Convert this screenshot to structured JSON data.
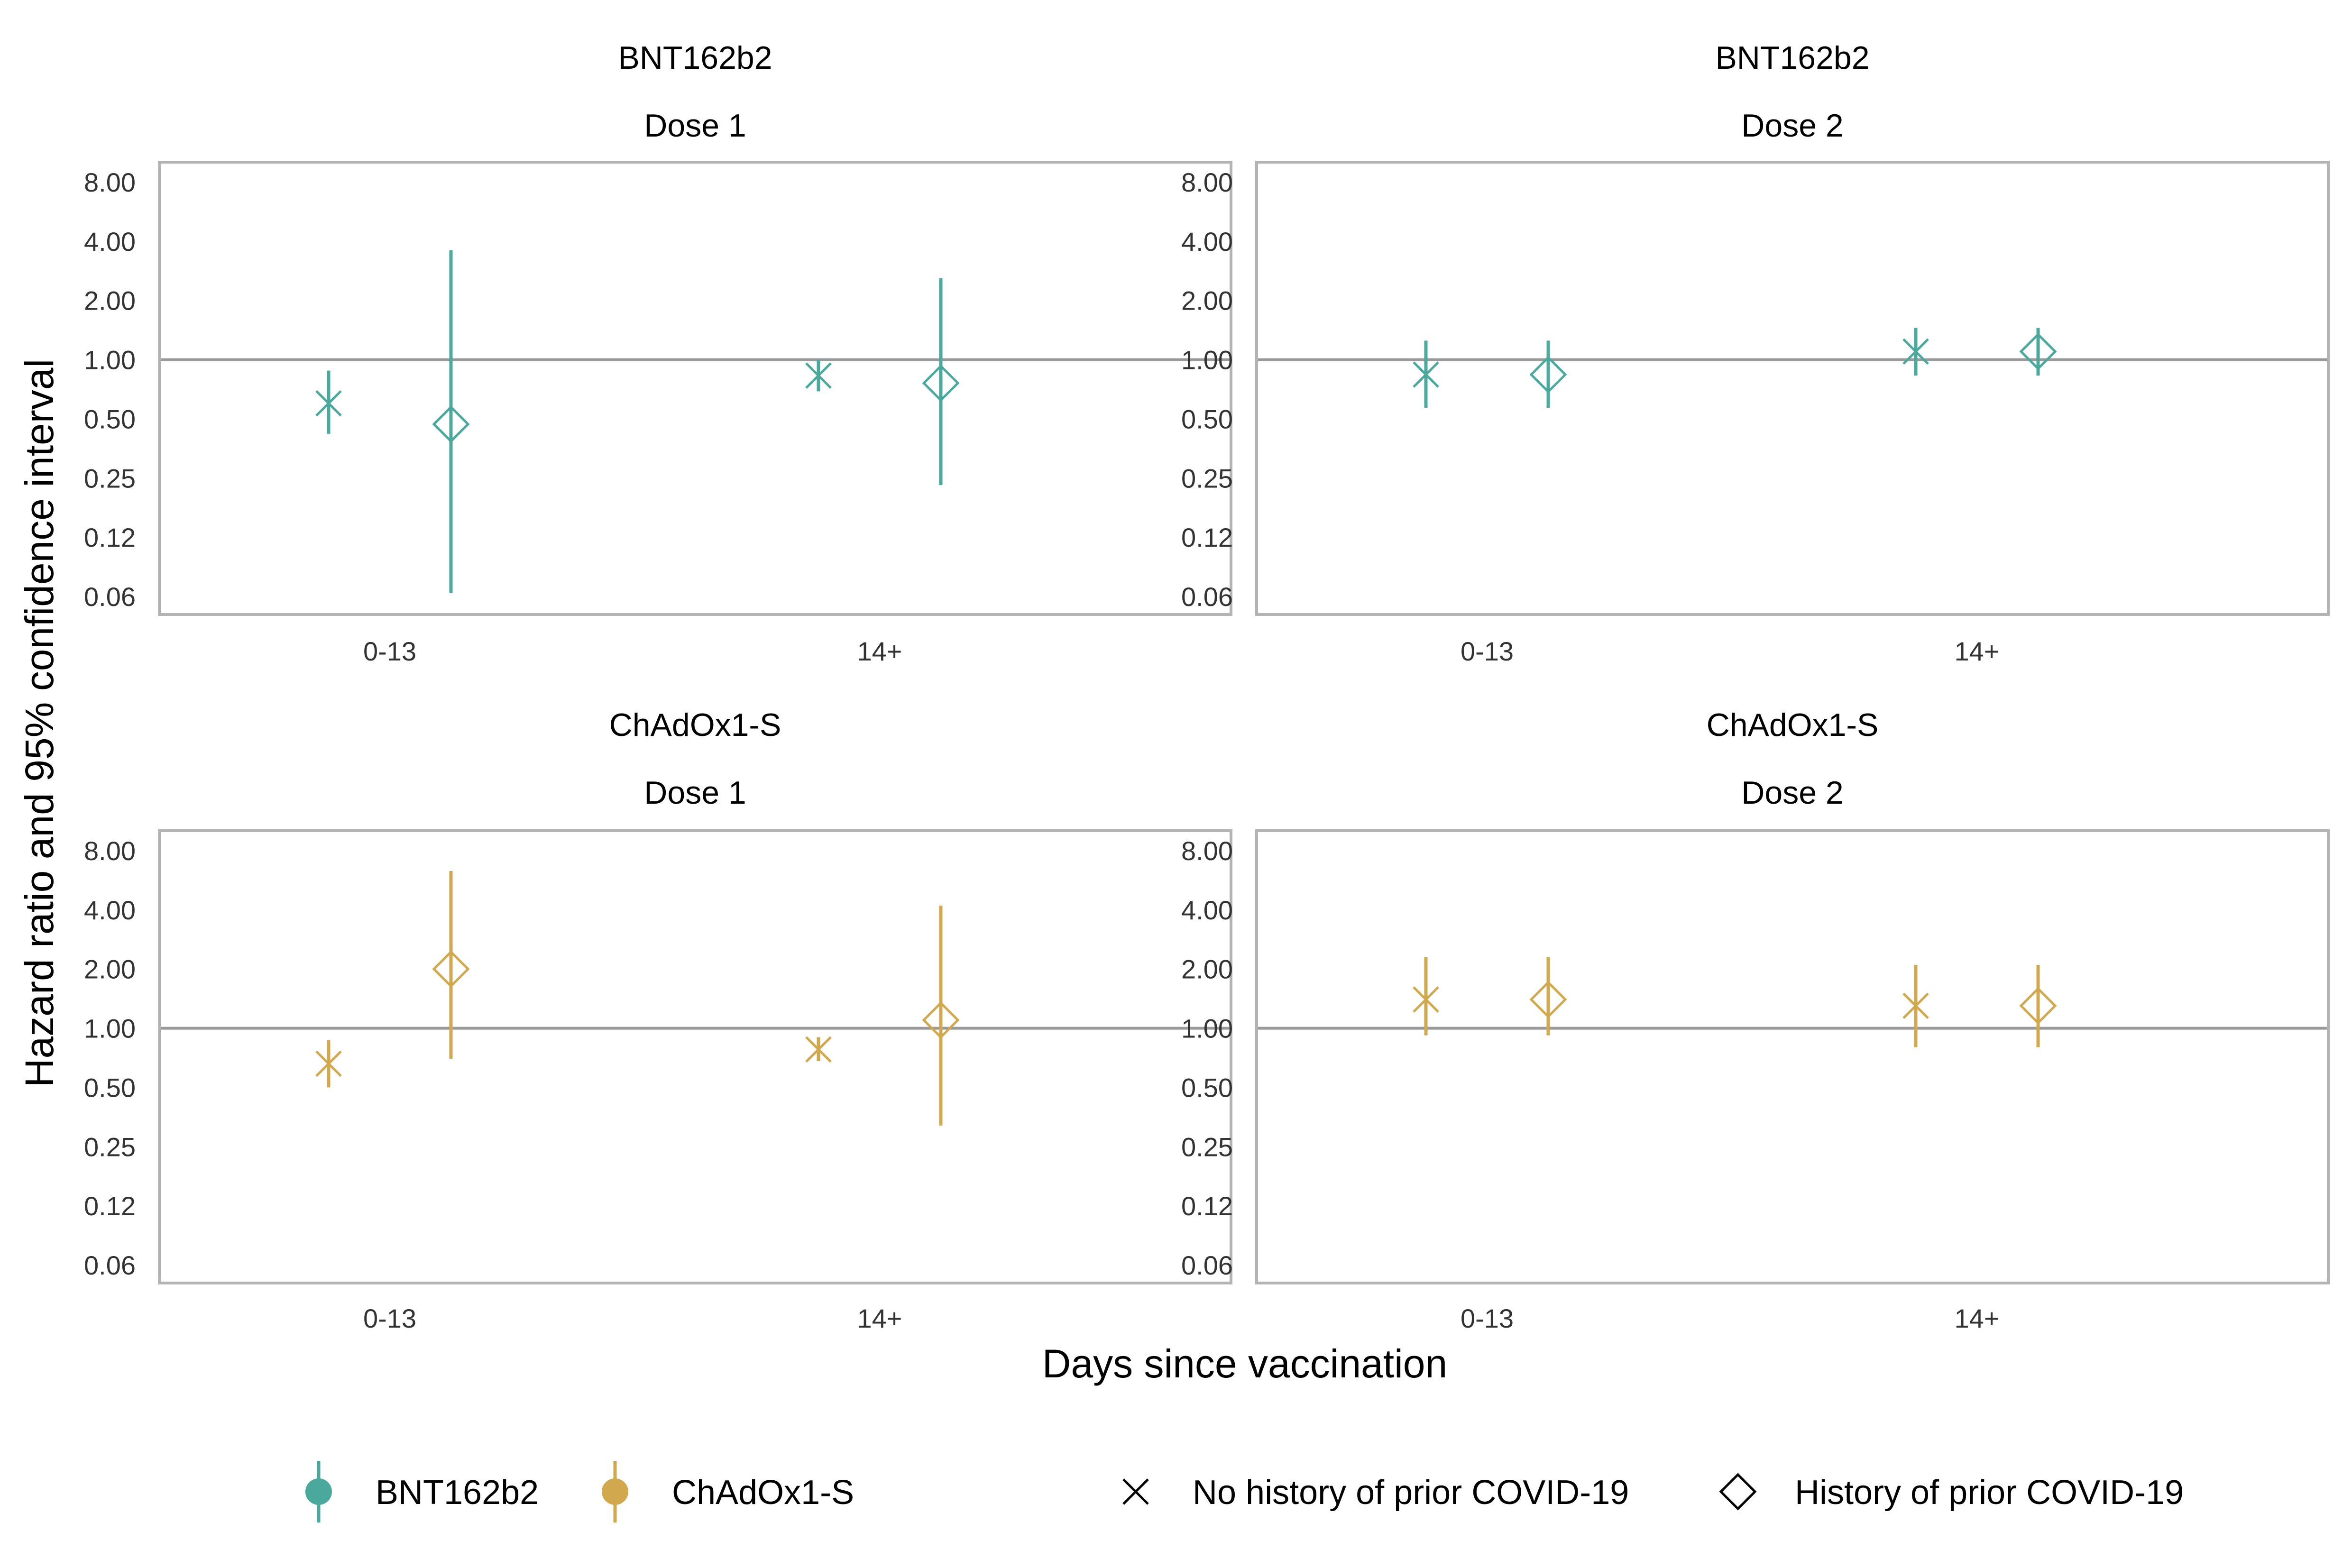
{
  "y_axis_label": "Hazard ratio and 95% confidence interval",
  "x_axis_label": "Days since vaccination",
  "colors": {
    "BNT162b2": "#4aa89c",
    "ChAdOx1-S": "#d2a84e",
    "frame": "#b3b3b3",
    "refline": "#9a9a9a",
    "text": "#333333"
  },
  "legend": {
    "vaccines": [
      {
        "label": "BNT162b2",
        "color": "#4aa89c"
      },
      {
        "label": "ChAdOx1-S",
        "color": "#d2a84e"
      }
    ],
    "history": [
      {
        "label": "No history of prior COVID-19",
        "shape": "x-cross"
      },
      {
        "label": "History of prior COVID-19",
        "shape": "diamond"
      }
    ]
  },
  "chart_data": [
    {
      "type": "scatter",
      "title": "BNT162b2",
      "subtitle": "Dose 1",
      "color": "#4aa89c",
      "categories": [
        "0-13",
        "14+"
      ],
      "yscale": "log2",
      "y_ticks": [
        "0.06",
        "0.12",
        "0.25",
        "0.50",
        "1.00",
        "2.00",
        "4.00",
        "8.00"
      ],
      "reference_line": 1.0,
      "series": [
        {
          "name": "No history of prior COVID-19",
          "shape": "x-cross",
          "points": [
            {
              "x": "0-13",
              "hr": 0.6,
              "lo": 0.42,
              "hi": 0.88
            },
            {
              "x": "14+",
              "hr": 0.83,
              "lo": 0.69,
              "hi": 1.0
            }
          ]
        },
        {
          "name": "History of prior COVID-19",
          "shape": "diamond",
          "points": [
            {
              "x": "0-13",
              "hr": 0.47,
              "lo": 0.065,
              "hi": 3.6
            },
            {
              "x": "14+",
              "hr": 0.76,
              "lo": 0.23,
              "hi": 2.6
            }
          ]
        }
      ]
    },
    {
      "type": "scatter",
      "title": "BNT162b2",
      "subtitle": "Dose 2",
      "color": "#4aa89c",
      "categories": [
        "0-13",
        "14+"
      ],
      "yscale": "log2",
      "y_ticks": [
        "0.06",
        "0.12",
        "0.25",
        "0.50",
        "1.00",
        "2.00",
        "4.00",
        "8.00"
      ],
      "reference_line": 1.0,
      "series": [
        {
          "name": "No history of prior COVID-19",
          "shape": "x-cross",
          "points": [
            {
              "x": "0-13",
              "hr": 0.84,
              "lo": 0.57,
              "hi": 1.25
            },
            {
              "x": "14+",
              "hr": 1.1,
              "lo": 0.83,
              "hi": 1.45
            }
          ]
        },
        {
          "name": "History of prior COVID-19",
          "shape": "diamond",
          "points": [
            {
              "x": "0-13",
              "hr": 0.84,
              "lo": 0.57,
              "hi": 1.25
            },
            {
              "x": "14+",
              "hr": 1.1,
              "lo": 0.83,
              "hi": 1.45
            }
          ]
        }
      ]
    },
    {
      "type": "scatter",
      "title": "ChAdOx1-S",
      "subtitle": "Dose 1",
      "color": "#d2a84e",
      "categories": [
        "0-13",
        "14+"
      ],
      "yscale": "log2",
      "y_ticks": [
        "0.06",
        "0.12",
        "0.25",
        "0.50",
        "1.00",
        "2.00",
        "4.00",
        "8.00"
      ],
      "reference_line": 1.0,
      "series": [
        {
          "name": "No history of prior COVID-19",
          "shape": "x-cross",
          "points": [
            {
              "x": "0-13",
              "hr": 0.66,
              "lo": 0.5,
              "hi": 0.87
            },
            {
              "x": "14+",
              "hr": 0.78,
              "lo": 0.68,
              "hi": 0.9
            }
          ]
        },
        {
          "name": "History of prior COVID-19",
          "shape": "diamond",
          "points": [
            {
              "x": "0-13",
              "hr": 2.0,
              "lo": 0.7,
              "hi": 6.3
            },
            {
              "x": "14+",
              "hr": 1.1,
              "lo": 0.32,
              "hi": 4.2
            }
          ]
        }
      ]
    },
    {
      "type": "scatter",
      "title": "ChAdOx1-S",
      "subtitle": "Dose 2",
      "color": "#d2a84e",
      "categories": [
        "0-13",
        "14+"
      ],
      "yscale": "log2",
      "y_ticks": [
        "0.06",
        "0.12",
        "0.25",
        "0.50",
        "1.00",
        "2.00",
        "4.00",
        "8.00"
      ],
      "reference_line": 1.0,
      "series": [
        {
          "name": "No history of prior COVID-19",
          "shape": "x-cross",
          "points": [
            {
              "x": "0-13",
              "hr": 1.4,
              "lo": 0.92,
              "hi": 2.3
            },
            {
              "x": "14+",
              "hr": 1.3,
              "lo": 0.8,
              "hi": 2.1
            }
          ]
        },
        {
          "name": "History of prior COVID-19",
          "shape": "diamond",
          "points": [
            {
              "x": "0-13",
              "hr": 1.4,
              "lo": 0.92,
              "hi": 2.3
            },
            {
              "x": "14+",
              "hr": 1.3,
              "lo": 0.8,
              "hi": 2.1
            }
          ]
        }
      ]
    }
  ]
}
